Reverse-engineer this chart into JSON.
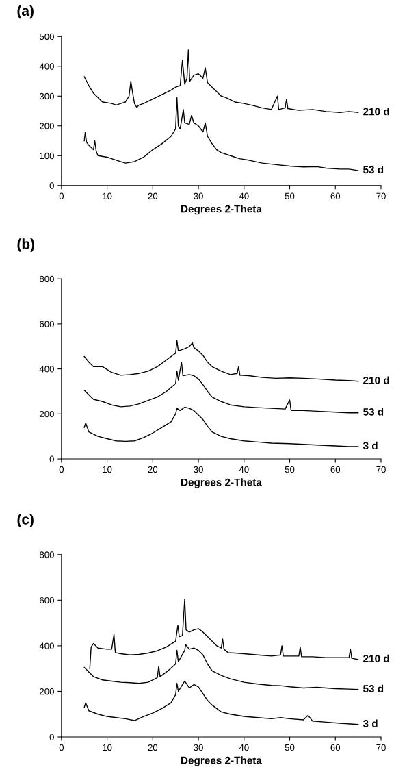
{
  "chart_data": [
    {
      "type": "line",
      "title": "(a)",
      "xlabel": "Degrees 2-Theta",
      "xlim": [
        0,
        70
      ],
      "xticks": [
        0,
        10,
        20,
        30,
        40,
        50,
        60,
        70
      ],
      "ylim": [
        0,
        500
      ],
      "yticks": [
        0,
        100,
        200,
        300,
        400,
        500
      ],
      "grid": false,
      "legend": false,
      "marker": "none",
      "line_style": "solid",
      "series": [
        {
          "name": "210 d",
          "color": "#000000",
          "x": [
            5,
            5.5,
            6,
            7,
            8,
            9,
            10,
            11,
            12,
            13,
            14,
            14.8,
            15.2,
            15.6,
            16,
            16.5,
            17,
            18,
            20,
            22,
            24,
            25,
            26,
            26.5,
            27,
            27.5,
            27.8,
            28.1,
            29,
            30,
            31,
            31.5,
            32,
            33,
            34,
            35,
            36,
            38,
            40,
            42,
            44,
            46,
            47.3,
            47.6,
            49,
            49.3,
            49.6,
            52,
            55,
            58,
            61,
            63,
            65
          ],
          "values": [
            365,
            350,
            335,
            310,
            295,
            280,
            278,
            275,
            270,
            275,
            280,
            300,
            350,
            310,
            275,
            262,
            270,
            275,
            290,
            305,
            320,
            330,
            335,
            420,
            340,
            360,
            455,
            350,
            370,
            375,
            360,
            395,
            345,
            330,
            315,
            300,
            295,
            280,
            275,
            268,
            260,
            255,
            300,
            255,
            260,
            290,
            258,
            252,
            255,
            248,
            245,
            248,
            245
          ]
        },
        {
          "name": "53 d",
          "color": "#000000",
          "x": [
            5,
            5.2,
            5.5,
            6,
            7,
            7.3,
            7.6,
            8,
            10,
            12,
            14,
            16,
            18,
            20,
            22,
            24,
            25,
            25.3,
            25.6,
            26,
            26.7,
            27,
            28,
            28.5,
            29,
            30,
            31,
            31.5,
            32,
            33,
            34,
            35,
            37,
            39,
            41,
            44,
            47,
            50,
            53,
            56,
            58,
            61,
            63,
            65
          ],
          "values": [
            150,
            178,
            145,
            135,
            120,
            150,
            115,
            100,
            95,
            85,
            75,
            80,
            95,
            120,
            140,
            165,
            190,
            295,
            200,
            190,
            255,
            210,
            205,
            235,
            210,
            200,
            180,
            210,
            165,
            140,
            120,
            110,
            100,
            90,
            85,
            75,
            70,
            65,
            62,
            63,
            58,
            55,
            55,
            50
          ]
        }
      ]
    },
    {
      "type": "line",
      "title": "(b)",
      "xlabel": "Degrees 2-Theta",
      "xlim": [
        0,
        70
      ],
      "xticks": [
        0,
        10,
        20,
        30,
        40,
        50,
        60,
        70
      ],
      "ylim": [
        0,
        800
      ],
      "yticks": [
        0,
        200,
        400,
        600,
        800
      ],
      "grid": false,
      "legend": false,
      "marker": "none",
      "line_style": "solid",
      "series": [
        {
          "name": "210 d",
          "color": "#000000",
          "x": [
            5,
            6,
            7,
            9,
            11,
            13,
            15,
            17,
            19,
            21,
            23,
            25,
            25.3,
            25.6,
            27,
            28,
            28.7,
            29,
            30,
            31,
            32,
            33,
            35,
            37,
            38.5,
            38.8,
            39.1,
            41,
            44,
            47,
            50,
            53,
            56,
            60,
            63,
            65
          ],
          "values": [
            455,
            430,
            410,
            410,
            385,
            372,
            375,
            380,
            390,
            410,
            440,
            470,
            525,
            480,
            490,
            500,
            515,
            495,
            480,
            460,
            430,
            410,
            390,
            375,
            380,
            410,
            372,
            370,
            362,
            358,
            360,
            358,
            355,
            350,
            348,
            345
          ]
        },
        {
          "name": "53 d",
          "color": "#000000",
          "x": [
            5,
            6,
            7,
            9,
            11,
            13,
            15,
            17,
            19,
            21,
            23,
            25,
            25.3,
            25.6,
            26.3,
            26.6,
            28,
            29,
            30,
            31,
            32,
            33,
            35,
            37,
            40,
            43,
            46,
            49,
            50,
            50.3,
            53,
            56,
            60,
            63,
            65
          ],
          "values": [
            305,
            285,
            265,
            255,
            240,
            232,
            235,
            245,
            260,
            275,
            300,
            335,
            390,
            350,
            430,
            370,
            375,
            370,
            355,
            330,
            300,
            275,
            255,
            240,
            232,
            228,
            225,
            222,
            262,
            215,
            215,
            212,
            208,
            205,
            205
          ]
        },
        {
          "name": "3 d",
          "color": "#000000",
          "x": [
            5,
            5.3,
            6,
            8,
            10,
            12,
            14,
            16,
            18,
            20,
            22,
            24,
            25,
            25.3,
            26,
            27,
            28,
            29,
            30,
            31,
            32,
            33,
            35,
            37,
            40,
            43,
            46,
            50,
            53,
            56,
            60,
            63,
            65
          ],
          "values": [
            140,
            160,
            120,
            100,
            90,
            80,
            78,
            80,
            95,
            115,
            140,
            165,
            200,
            225,
            215,
            230,
            225,
            215,
            195,
            175,
            145,
            120,
            100,
            90,
            80,
            75,
            70,
            68,
            65,
            62,
            58,
            55,
            55
          ]
        }
      ]
    },
    {
      "type": "line",
      "title": "(c)",
      "xlabel": "Degrees 2-Theta",
      "xlim": [
        0,
        70
      ],
      "xticks": [
        0,
        10,
        20,
        30,
        40,
        50,
        60,
        70
      ],
      "ylim": [
        0,
        800
      ],
      "yticks": [
        0,
        200,
        400,
        600,
        800
      ],
      "grid": false,
      "legend": false,
      "marker": "none",
      "line_style": "solid",
      "series": [
        {
          "name": "210 d",
          "color": "#000000",
          "x": [
            6.2,
            6.5,
            7,
            8,
            10,
            11,
            11.5,
            11.8,
            13,
            15,
            17,
            19,
            21,
            23,
            25,
            25.5,
            25.8,
            26.5,
            27,
            27.3,
            28,
            29,
            30,
            31,
            32,
            33,
            34,
            35,
            35.3,
            35.6,
            36.5,
            38,
            40,
            43,
            46,
            48,
            48.3,
            48.6,
            52,
            52.3,
            52.6,
            55,
            58,
            63,
            63.3,
            63.6,
            65
          ],
          "values": [
            300,
            395,
            410,
            390,
            385,
            385,
            450,
            370,
            365,
            360,
            362,
            368,
            378,
            395,
            420,
            490,
            440,
            445,
            605,
            470,
            460,
            470,
            475,
            460,
            440,
            420,
            400,
            390,
            430,
            385,
            370,
            368,
            365,
            360,
            355,
            360,
            400,
            355,
            355,
            395,
            352,
            352,
            348,
            348,
            385,
            345,
            340
          ]
        },
        {
          "name": "53 d",
          "color": "#000000",
          "x": [
            5,
            5.5,
            6,
            7,
            9,
            11,
            13,
            15,
            17,
            19,
            21,
            21.3,
            21.6,
            23,
            25,
            25.3,
            25.6,
            27,
            27.2,
            28,
            29,
            30,
            31,
            32,
            33,
            35,
            37,
            40,
            43,
            46,
            48,
            50,
            53,
            56,
            60,
            63,
            65
          ],
          "values": [
            305,
            295,
            285,
            265,
            250,
            245,
            240,
            238,
            235,
            240,
            260,
            310,
            265,
            285,
            320,
            380,
            330,
            380,
            405,
            385,
            390,
            380,
            360,
            320,
            290,
            270,
            255,
            240,
            232,
            226,
            225,
            220,
            215,
            218,
            212,
            210,
            208
          ]
        },
        {
          "name": "3 d",
          "color": "#000000",
          "x": [
            5,
            5.3,
            6,
            8,
            10,
            12,
            14,
            16,
            18,
            20,
            22,
            24,
            25,
            25.3,
            25.6,
            27,
            28,
            29,
            30,
            31,
            32,
            33,
            35,
            37,
            40,
            43,
            46,
            48,
            50,
            53,
            54,
            55,
            58,
            61,
            65
          ],
          "values": [
            130,
            150,
            115,
            100,
            90,
            85,
            80,
            72,
            90,
            105,
            125,
            150,
            185,
            235,
            200,
            245,
            215,
            230,
            220,
            190,
            160,
            140,
            110,
            100,
            90,
            85,
            80,
            85,
            80,
            75,
            95,
            70,
            65,
            60,
            55
          ]
        }
      ]
    }
  ]
}
